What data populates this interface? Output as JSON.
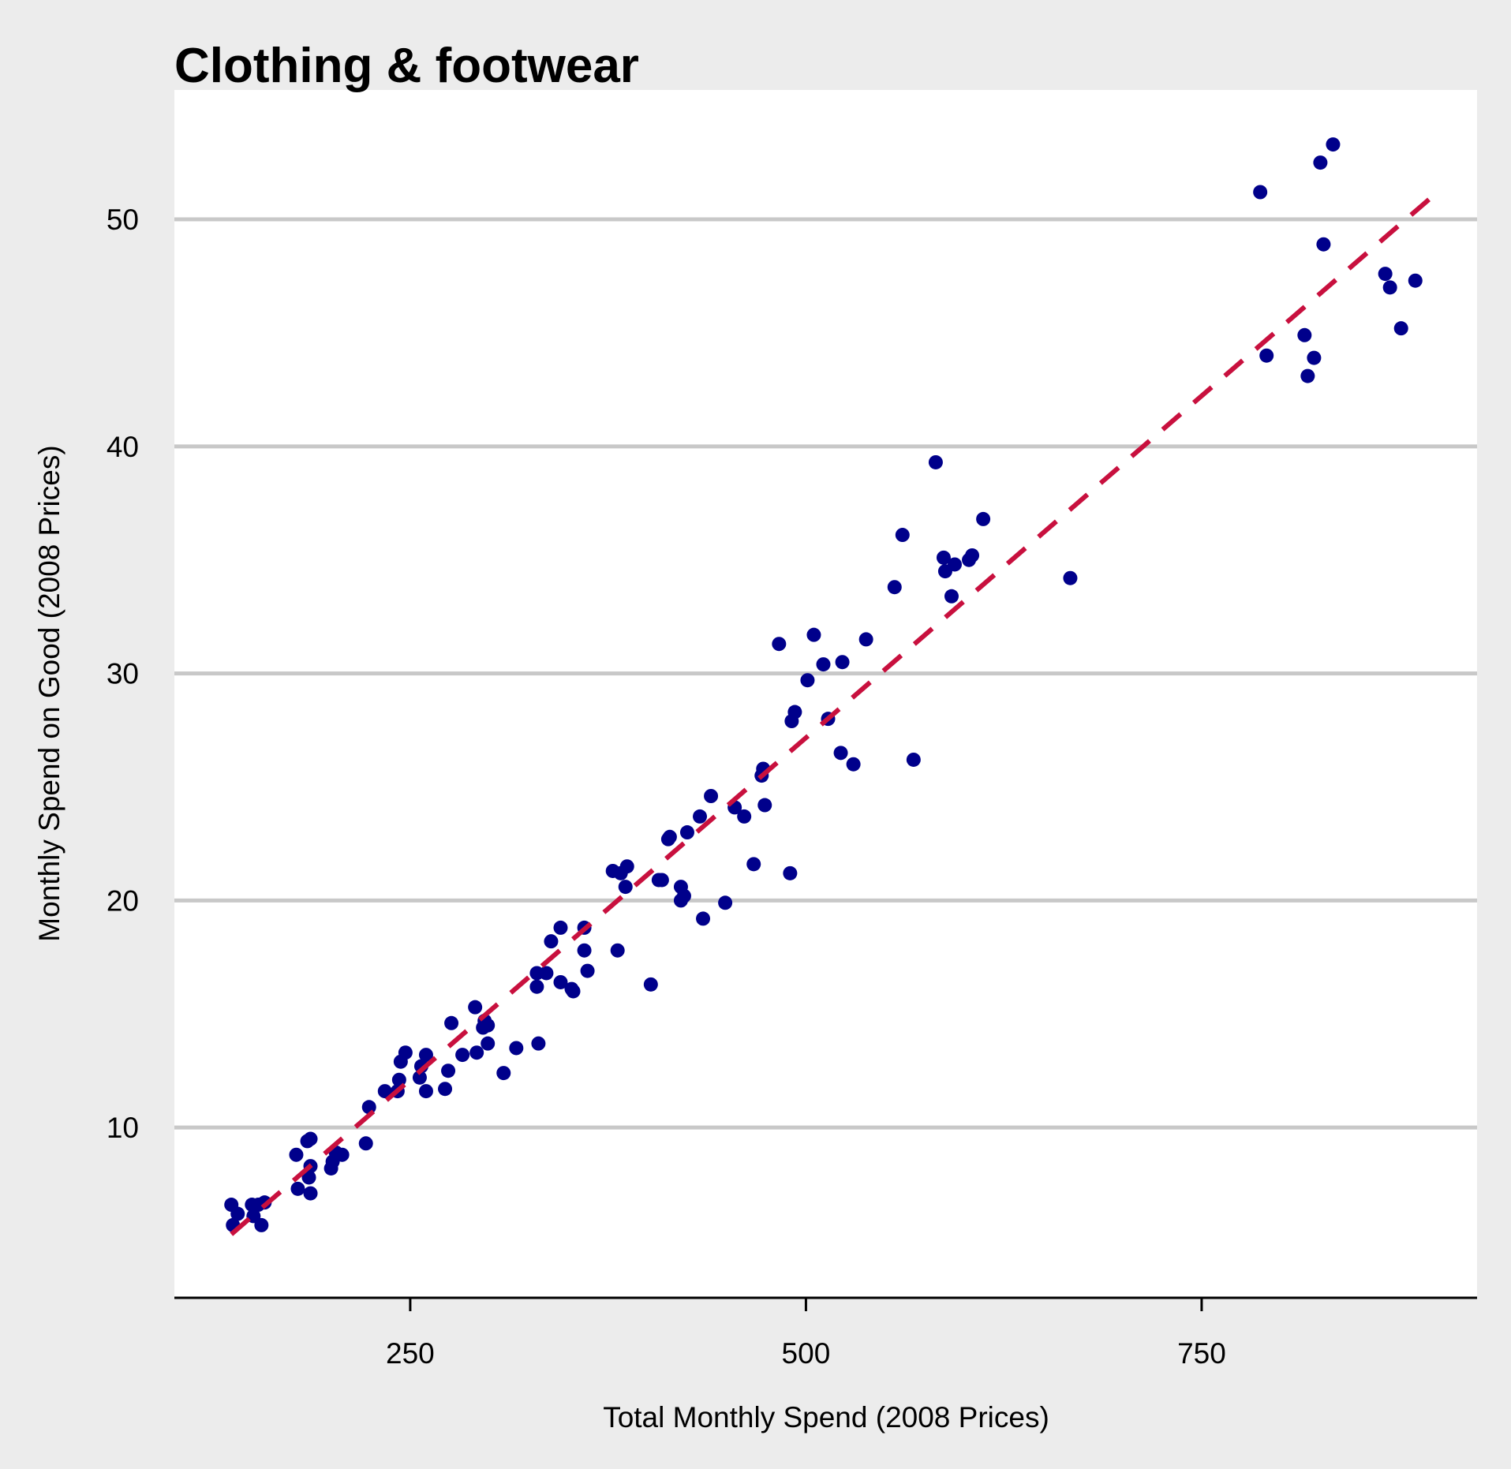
{
  "chart_data": {
    "type": "scatter",
    "title": "Clothing & footwear",
    "xlabel": "Total Monthly Spend (2008 Prices)",
    "ylabel": "Monthly Spend on Good (2008 Prices)",
    "xlim": [
      101,
      924
    ],
    "ylim": [
      2.5,
      55.7
    ],
    "x_ticks": [
      250,
      500,
      750
    ],
    "y_ticks": [
      10,
      20,
      30,
      40,
      50
    ],
    "grid": "horizontal",
    "legend": "none",
    "colors": {
      "background": "#ececec",
      "panel": "#ffffff",
      "grid": "#c8c8c8",
      "points": "#00008b",
      "fit_line": "#c8103e"
    },
    "fit_line": {
      "style": "dashed",
      "x": [
        137,
        894
      ],
      "y": [
        5.3,
        50.9
      ]
    },
    "points": [
      [
        137,
        6.6
      ],
      [
        138,
        5.7
      ],
      [
        141,
        6.2
      ],
      [
        150,
        6.6
      ],
      [
        151,
        6.1
      ],
      [
        154,
        6.6
      ],
      [
        156,
        5.7
      ],
      [
        158,
        6.7
      ],
      [
        178,
        8.8
      ],
      [
        179,
        7.3
      ],
      [
        185,
        9.4
      ],
      [
        187,
        9.5
      ],
      [
        186,
        7.8
      ],
      [
        187,
        8.3
      ],
      [
        187,
        7.1
      ],
      [
        200,
        8.2
      ],
      [
        201,
        8.5
      ],
      [
        203,
        8.9
      ],
      [
        207,
        8.8
      ],
      [
        222,
        9.3
      ],
      [
        224,
        10.9
      ],
      [
        234,
        11.6
      ],
      [
        242,
        11.6
      ],
      [
        243,
        12.1
      ],
      [
        244,
        12.9
      ],
      [
        247,
        13.3
      ],
      [
        256,
        12.2
      ],
      [
        257,
        12.7
      ],
      [
        260,
        11.6
      ],
      [
        260,
        13.2
      ],
      [
        272,
        11.7
      ],
      [
        274,
        12.5
      ],
      [
        276,
        14.6
      ],
      [
        283,
        13.2
      ],
      [
        291,
        15.3
      ],
      [
        292,
        13.3
      ],
      [
        296,
        14.4
      ],
      [
        297,
        14.7
      ],
      [
        299,
        13.7
      ],
      [
        299,
        14.5
      ],
      [
        309,
        12.4
      ],
      [
        317,
        13.5
      ],
      [
        330,
        16.2
      ],
      [
        330,
        16.8
      ],
      [
        331,
        13.7
      ],
      [
        336,
        16.8
      ],
      [
        339,
        18.2
      ],
      [
        345,
        16.4
      ],
      [
        345,
        18.8
      ],
      [
        352,
        16.1
      ],
      [
        353,
        16.0
      ],
      [
        360,
        18.8
      ],
      [
        360,
        17.8
      ],
      [
        362,
        16.9
      ],
      [
        378,
        21.3
      ],
      [
        381,
        17.8
      ],
      [
        383,
        21.2
      ],
      [
        386,
        20.6
      ],
      [
        387,
        21.5
      ],
      [
        402,
        16.3
      ],
      [
        407,
        20.9
      ],
      [
        409,
        20.9
      ],
      [
        413,
        22.7
      ],
      [
        414,
        22.8
      ],
      [
        421,
        20.6
      ],
      [
        421,
        20.0
      ],
      [
        423,
        20.2
      ],
      [
        425,
        23.0
      ],
      [
        433,
        23.7
      ],
      [
        435,
        19.2
      ],
      [
        440,
        24.6
      ],
      [
        449,
        19.9
      ],
      [
        455,
        24.1
      ],
      [
        461,
        23.7
      ],
      [
        467,
        21.6
      ],
      [
        472,
        25.5
      ],
      [
        473,
        25.8
      ],
      [
        474,
        24.2
      ],
      [
        483,
        31.3
      ],
      [
        490,
        21.2
      ],
      [
        491,
        27.9
      ],
      [
        493,
        28.3
      ],
      [
        501,
        29.7
      ],
      [
        505,
        31.7
      ],
      [
        511,
        30.4
      ],
      [
        514,
        28.0
      ],
      [
        522,
        26.5
      ],
      [
        523,
        30.5
      ],
      [
        530,
        26.0
      ],
      [
        538,
        31.5
      ],
      [
        556,
        33.8
      ],
      [
        561,
        36.1
      ],
      [
        568,
        26.2
      ],
      [
        582,
        39.3
      ],
      [
        587,
        35.1
      ],
      [
        588,
        34.5
      ],
      [
        592,
        33.4
      ],
      [
        594,
        34.8
      ],
      [
        603,
        35.0
      ],
      [
        605,
        35.2
      ],
      [
        612,
        36.8
      ],
      [
        667,
        34.2
      ],
      [
        787,
        51.2
      ],
      [
        791,
        44.0
      ],
      [
        815,
        44.9
      ],
      [
        817,
        43.1
      ],
      [
        821,
        43.9
      ],
      [
        825,
        52.5
      ],
      [
        827,
        48.9
      ],
      [
        833,
        53.3
      ],
      [
        866,
        47.6
      ],
      [
        869,
        47.0
      ],
      [
        876,
        45.2
      ],
      [
        885,
        47.3
      ]
    ]
  }
}
